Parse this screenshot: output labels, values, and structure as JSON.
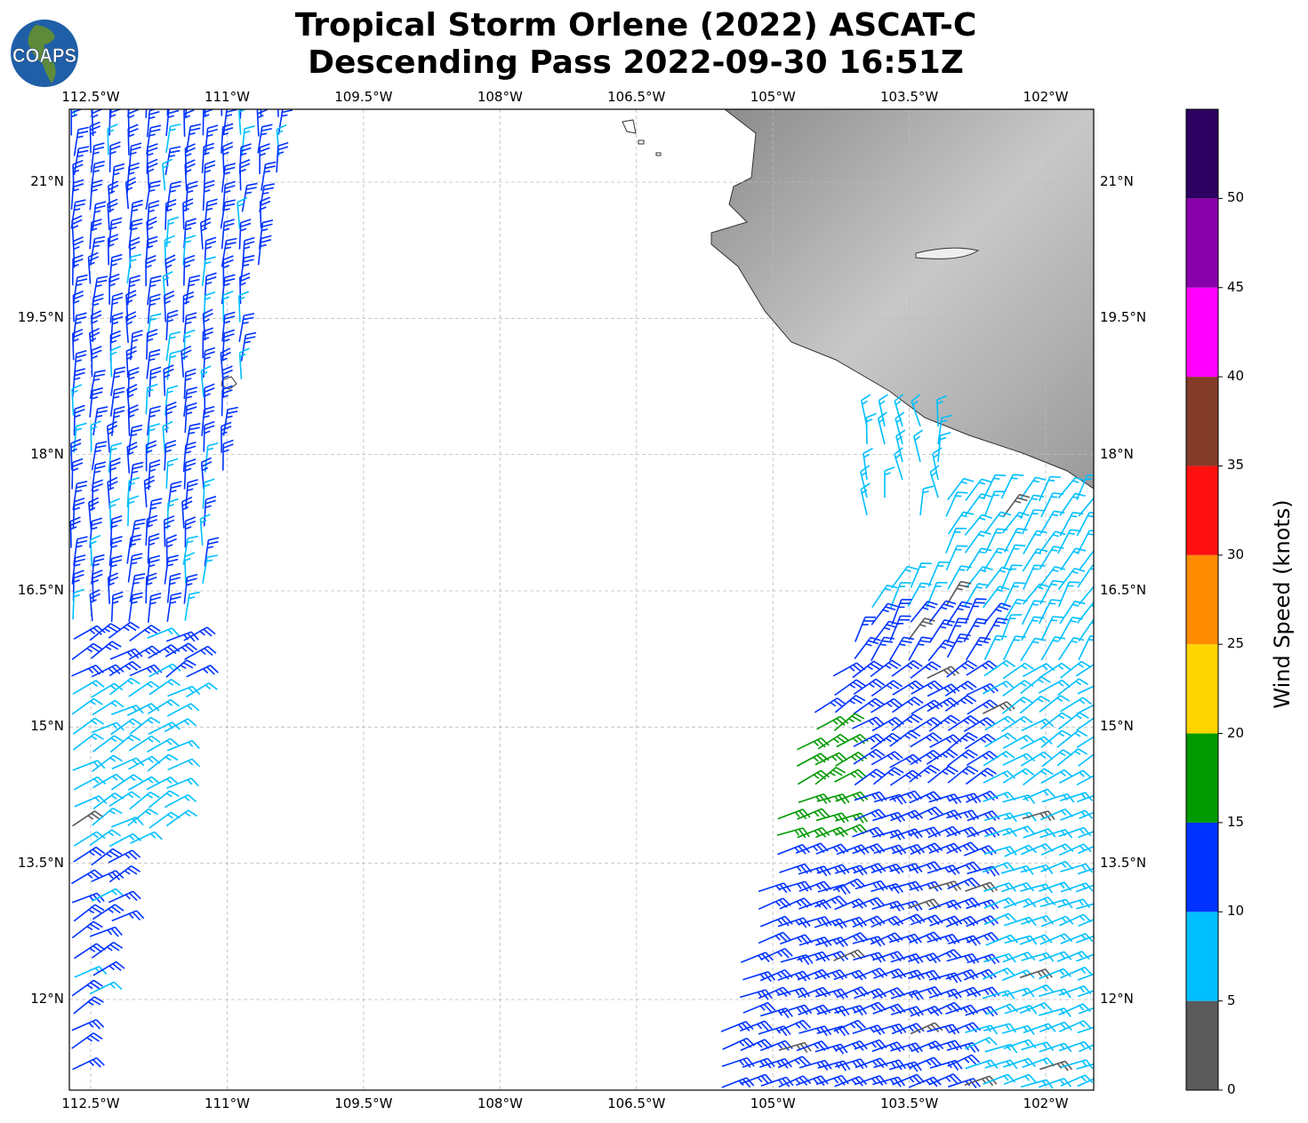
{
  "title": {
    "line1": "Tropical Storm Orlene (2022) ASCAT-C",
    "line2": "Descending Pass 2022-09-30 16:51Z"
  },
  "logo": {
    "text": "COAPS"
  },
  "map": {
    "lon_ticks": [
      "112.5°W",
      "111°W",
      "109.5°W",
      "108°W",
      "106.5°W",
      "105°W",
      "103.5°W",
      "102°W"
    ],
    "lon_values": [
      -112.5,
      -111,
      -109.5,
      -108,
      -106.5,
      -105,
      -103.5,
      -102
    ],
    "lat_ticks": [
      "21°N",
      "19.5°N",
      "18°N",
      "16.5°N",
      "15°N",
      "13.5°N",
      "12°N"
    ],
    "lat_values": [
      21,
      19.5,
      18,
      16.5,
      15,
      13.5,
      12
    ],
    "extent": {
      "lon": [
        -112.73,
        -101.48
      ],
      "lat": [
        11.0,
        21.8
      ]
    },
    "gridlines": true,
    "land": "grayscale topography"
  },
  "colorbar": {
    "label": "Wind Speed (knots)",
    "ticks": [
      "0",
      "5",
      "10",
      "15",
      "20",
      "25",
      "30",
      "35",
      "40",
      "45",
      "50"
    ],
    "bounds": [
      0,
      5,
      10,
      15,
      20,
      25,
      30,
      35,
      40,
      45,
      50,
      55
    ],
    "colors": [
      "#5a5a5a",
      "#00bfff",
      "#0033ff",
      "#009900",
      "#ffd500",
      "#ff8c00",
      "#ff1010",
      "#833c2a",
      "#ff00ff",
      "#8800aa",
      "#2c0060"
    ]
  }
}
